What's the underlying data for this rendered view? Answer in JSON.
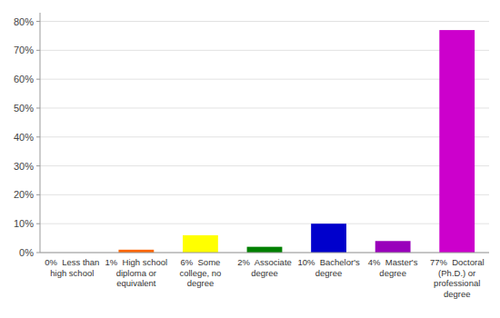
{
  "chart_data": {
    "type": "bar",
    "categories": [
      "0%  Less than\nhigh school",
      "1%  High school\ndiploma or\nequivalent",
      "6%  Some\ncollege, no\ndegree",
      "2%  Associate\ndegree",
      "10%  Bachelor's\ndegree",
      "4%  Master's\ndegree",
      "77%  Doctoral\n(Ph.D.) or\nprofessional\ndegree"
    ],
    "values": [
      0,
      1,
      6,
      2,
      10,
      4,
      77
    ],
    "colors": [
      "#ff0000",
      "#ff6600",
      "#ffff00",
      "#008000",
      "#0000cc",
      "#9900bb",
      "#cc00cc"
    ],
    "ylim": [
      0,
      83
    ],
    "yticks": [
      {
        "value": 0,
        "label": "0%"
      },
      {
        "value": 10,
        "label": "10%"
      },
      {
        "value": 20,
        "label": "20%"
      },
      {
        "value": 30,
        "label": "30%"
      },
      {
        "value": 40,
        "label": "40%"
      },
      {
        "value": 50,
        "label": "50%"
      },
      {
        "value": 60,
        "label": "60%"
      },
      {
        "value": 70,
        "label": "70%"
      },
      {
        "value": 80,
        "label": "80%"
      }
    ],
    "grid": true
  }
}
